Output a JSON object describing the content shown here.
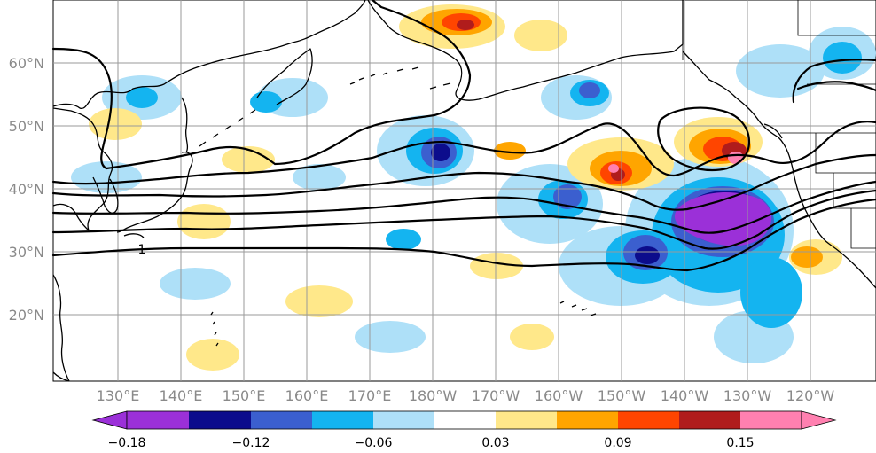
{
  "map": {
    "lat_labels": [
      "60°N",
      "50°N",
      "40°N",
      "30°N",
      "20°N"
    ],
    "lon_labels": [
      "130°E",
      "140°E",
      "150°E",
      "160°E",
      "170°E",
      "180°W",
      "170°W",
      "160°W",
      "150°W",
      "140°W",
      "130°W",
      "120°W"
    ],
    "contour_label": "1"
  },
  "colorbar": {
    "tick_labels": [
      "−0.18",
      "−0.12",
      "−0.06",
      "0.03",
      "0.09",
      "0.15"
    ],
    "colors": [
      "#9b30d8",
      "#0c0c8c",
      "#3b5fcf",
      "#14b4f0",
      "#aee0f8",
      "#ffffff",
      "#ffe88a",
      "#ffa500",
      "#ff4500",
      "#b01c1c",
      "#ff80b0"
    ]
  }
}
